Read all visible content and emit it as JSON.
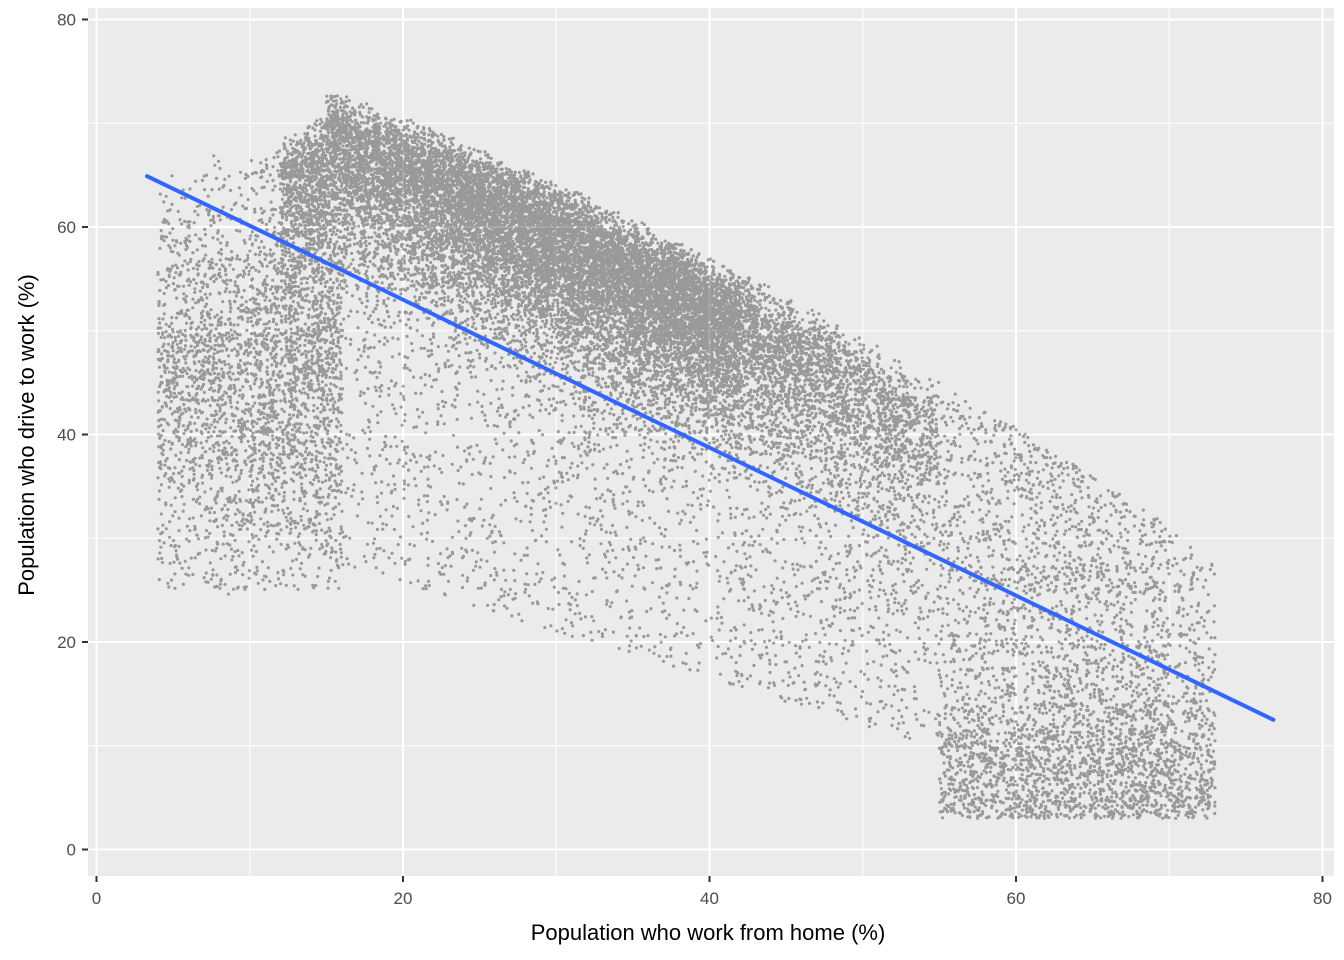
{
  "chart_data": {
    "type": "scatter",
    "title": "",
    "xlabel": "Population who work from home (%)",
    "ylabel": "Population who drive to work (%)",
    "xlim": [
      0,
      80
    ],
    "ylim": [
      0,
      80
    ],
    "x_ticks": [
      "0",
      "20",
      "40",
      "60",
      "80"
    ],
    "y_ticks": [
      "0",
      "20",
      "40",
      "60",
      "80"
    ],
    "grid": true,
    "legend": "none",
    "point_color": "#000000",
    "point_alpha": 0.35,
    "approx_point_count": 30000,
    "regression_line": {
      "method": "linear fit",
      "color": "#3366ff",
      "x": [
        3.3,
        76.8
      ],
      "y": [
        64.9,
        12.5
      ],
      "slope": -0.713,
      "intercept": 67.25
    },
    "point_cloud_summary": {
      "description_points": [
        {
          "x": 5,
          "y": 52
        },
        {
          "x": 10,
          "y": 60
        },
        {
          "x": 15,
          "y": 65
        },
        {
          "x": 20,
          "y": 62
        },
        {
          "x": 25,
          "y": 58
        },
        {
          "x": 30,
          "y": 57
        },
        {
          "x": 35,
          "y": 53
        },
        {
          "x": 40,
          "y": 49
        },
        {
          "x": 45,
          "y": 45
        },
        {
          "x": 50,
          "y": 40
        },
        {
          "x": 55,
          "y": 33
        },
        {
          "x": 60,
          "y": 25
        },
        {
          "x": 65,
          "y": 15
        },
        {
          "x": 70,
          "y": 8
        },
        {
          "x": 75,
          "y": 4
        }
      ]
    }
  }
}
